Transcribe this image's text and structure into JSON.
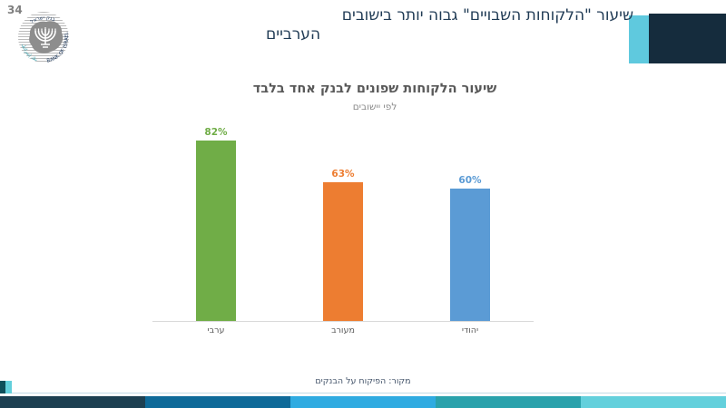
{
  "page": {
    "number": "34"
  },
  "header": {
    "title_line1": "שיעור \"הלקוחות השבויים\" גבוה יותר בישובים",
    "title_line2": "הערביים",
    "title_color": "#1f3a54",
    "accent_cyan": "#5fc9de",
    "accent_navy": "#152c3d"
  },
  "logo": {
    "hebrew": "בנק ישראל",
    "english": "BANK OF ISRAEL",
    "arabic": "بنك إسرائيل"
  },
  "chart_data": {
    "type": "bar",
    "title": "שיעור הלקוחות שפונים לבנק אחד בלבד",
    "subtitle": "לפי יישובים",
    "categories": [
      "ערבי",
      "מעורב",
      "יהודי"
    ],
    "values": [
      82,
      63,
      60
    ],
    "value_labels": [
      "82%",
      "63%",
      "60%"
    ],
    "bar_colors": [
      "#70ad47",
      "#ed7d31",
      "#5b9bd5"
    ],
    "ylim": [
      0,
      100
    ],
    "grid": false,
    "legend": false,
    "rtl": true
  },
  "footer": {
    "source": "מקור: הפיקוח על הבנקים",
    "strip_colors": [
      "#1d4051",
      "#0e6a99",
      "#2fabe1",
      "#2aa2ac",
      "#63d0dc"
    ],
    "corner_dark": "#0d4f5a",
    "corner_cyan": "#62cfdb"
  }
}
